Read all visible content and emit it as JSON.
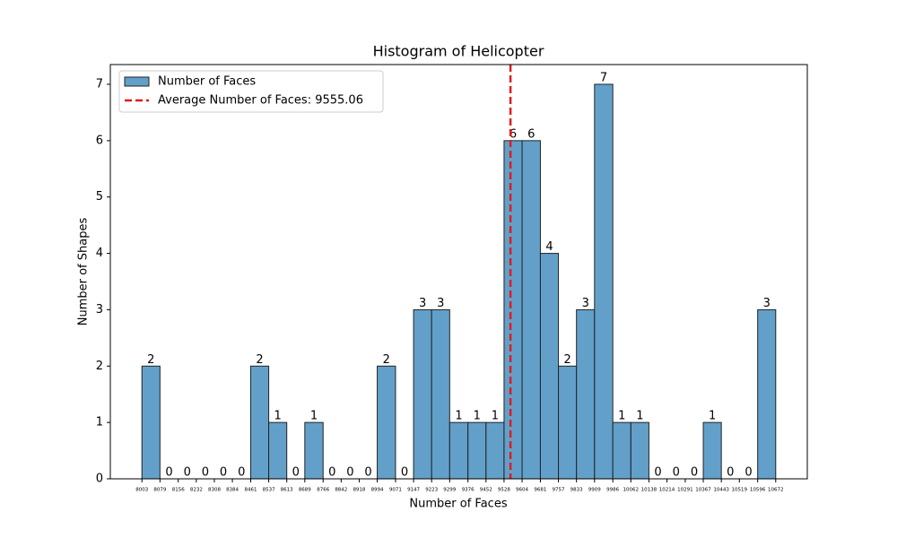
{
  "chart_data": {
    "type": "histogram",
    "title": "Histogram of Helicopter",
    "xlabel": "Number of Faces",
    "ylabel": "Number of Shapes",
    "bins": [
      8003,
      8079,
      8156,
      8232,
      8308,
      8384,
      8461,
      8537,
      8613,
      8689,
      8766,
      8842,
      8918,
      8994,
      9071,
      9147,
      9223,
      9299,
      9376,
      9452,
      9528,
      9604,
      9681,
      9757,
      9833,
      9909,
      9986,
      10062,
      10138,
      10214,
      10291,
      10367,
      10443,
      10519,
      10596,
      10672
    ],
    "series": [
      {
        "name": "Number of Faces",
        "color": "#62a0ca",
        "values": [
          2,
          0,
          0,
          0,
          0,
          0,
          2,
          1,
          0,
          1,
          0,
          0,
          0,
          2,
          0,
          3,
          3,
          1,
          1,
          1,
          6,
          6,
          4,
          2,
          3,
          7,
          1,
          1,
          0,
          0,
          0,
          1,
          0,
          0,
          3
        ]
      }
    ],
    "mean": 9555.06,
    "mean_label": "Average Number of Faces: 9555.06",
    "mean_color": "#e41a1c",
    "xlim": [
      7870,
      10805
    ],
    "ylim": [
      0,
      7.35
    ],
    "yticks": [
      0,
      1,
      2,
      3,
      4,
      5,
      6,
      7
    ],
    "legend": "upper left"
  }
}
